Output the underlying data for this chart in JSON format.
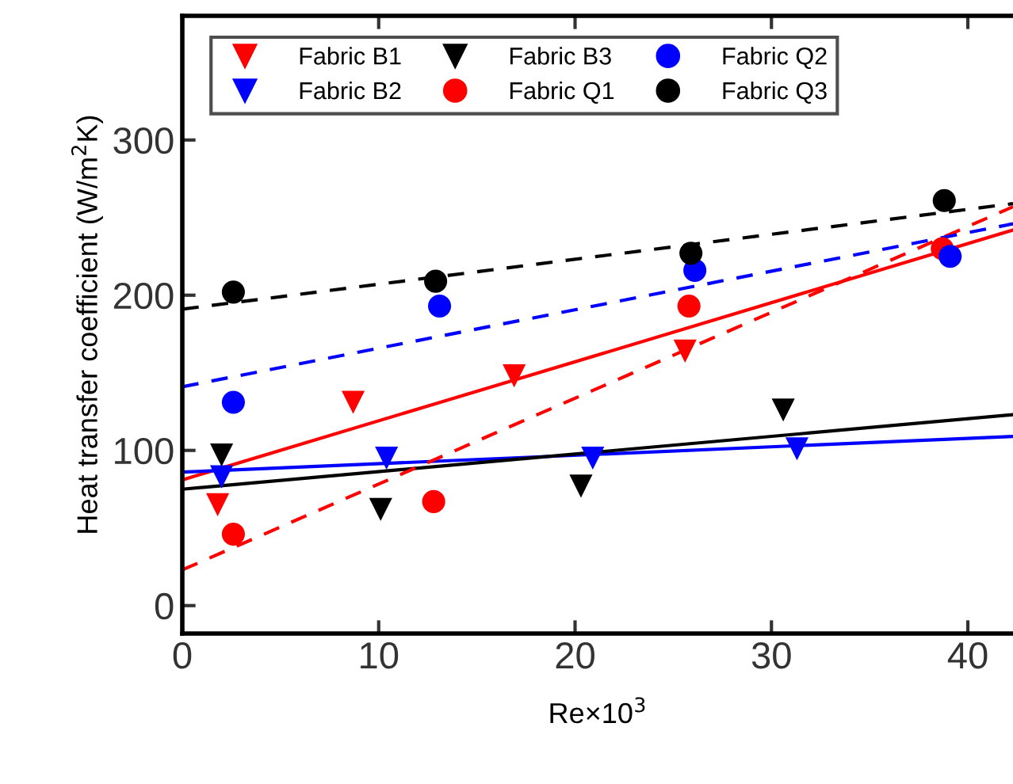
{
  "chart_data": {
    "type": "scatter",
    "xlabel": "Re×10$^{3}$",
    "ylabel": "Heat transfer coefficient (W/m$^{2}$K)",
    "xlim": [
      0,
      42.3
    ],
    "ylim": [
      -18,
      380
    ],
    "xticks": [
      0,
      10,
      20,
      30,
      40
    ],
    "yticks": [
      0,
      100,
      200,
      300
    ],
    "grid": false,
    "legend": "top",
    "series": [
      {
        "name": "Fabric B1",
        "color": "#ff0000",
        "marker": "triangle",
        "x": [
          1.8,
          8.7,
          16.9,
          25.6
        ],
        "values": [
          65,
          131,
          148,
          164
        ]
      },
      {
        "name": "Fabric B2",
        "color": "#0000ff",
        "marker": "triangle",
        "x": [
          2.0,
          10.4,
          20.9,
          31.3
        ],
        "values": [
          83,
          95,
          95,
          101
        ]
      },
      {
        "name": "Fabric B3",
        "color": "#000000",
        "marker": "triangle",
        "x": [
          2.0,
          10.1,
          20.3,
          30.6
        ],
        "values": [
          97,
          62,
          77,
          126
        ]
      },
      {
        "name": "Fabric Q1",
        "color": "#ff0000",
        "marker": "circle",
        "x": [
          2.6,
          12.8,
          25.8,
          38.7
        ],
        "values": [
          46,
          67,
          193,
          230
        ]
      },
      {
        "name": "Fabric Q2",
        "color": "#0000ff",
        "marker": "circle",
        "x": [
          2.6,
          13.1,
          26.1,
          39.1
        ],
        "values": [
          131,
          193,
          216,
          225
        ]
      },
      {
        "name": "Fabric Q3",
        "color": "#000000",
        "marker": "circle",
        "x": [
          2.6,
          12.9,
          25.9,
          38.8
        ],
        "values": [
          202,
          209,
          227,
          261
        ]
      },
      {
        "type": "line",
        "color": "#ff0000",
        "line_style": "solid",
        "x": [
          0,
          42.3
        ],
        "values": [
          81,
          242
        ]
      },
      {
        "type": "line",
        "color": "#0000ff",
        "line_style": "solid",
        "x": [
          0,
          42.3
        ],
        "values": [
          86,
          109
        ]
      },
      {
        "type": "line",
        "color": "#000000",
        "line_style": "solid",
        "x": [
          0,
          42.3
        ],
        "values": [
          75,
          123
        ]
      },
      {
        "type": "line",
        "color": "#ff0000",
        "line_style": "dashed",
        "x": [
          0,
          42.3
        ],
        "values": [
          23,
          257
        ]
      },
      {
        "type": "line",
        "color": "#0000ff",
        "line_style": "dashed",
        "x": [
          0,
          42.3
        ],
        "values": [
          141,
          246
        ]
      },
      {
        "type": "line",
        "color": "#000000",
        "line_style": "dashed",
        "x": [
          0,
          42.3
        ],
        "values": [
          191,
          259
        ]
      }
    ]
  }
}
